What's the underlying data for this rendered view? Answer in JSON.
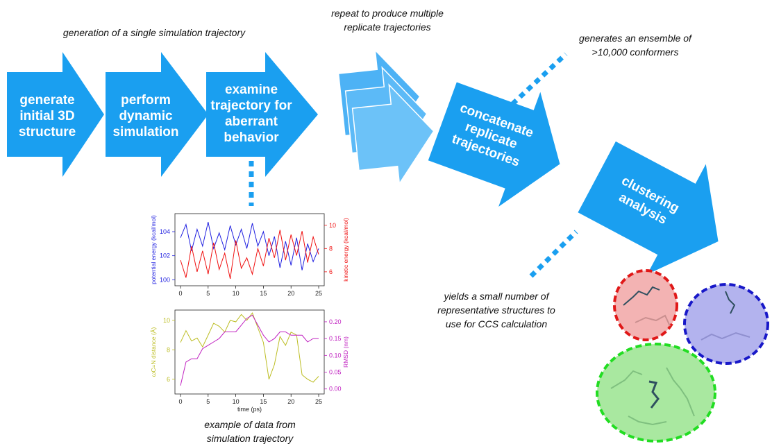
{
  "captions": {
    "single": {
      "lines": [
        "generation of a single simulation trajectory"
      ]
    },
    "repeat": {
      "lines": [
        "repeat to produce multiple",
        "replicate trajectories"
      ]
    },
    "ensemble": {
      "lines": [
        "generates an ensemble of",
        ">10,000 conformers"
      ]
    },
    "yields": {
      "lines": [
        "yields a small number of",
        "representative structures to",
        "use for CCS calculation"
      ]
    },
    "example": {
      "lines": [
        "example of data from",
        "simulation trajectory"
      ]
    }
  },
  "arrows": [
    {
      "lines": [
        "generate",
        "initial 3D",
        "structure"
      ]
    },
    {
      "lines": [
        "perform",
        "dynamic",
        "simulation"
      ]
    },
    {
      "lines": [
        "examine",
        "trajectory for",
        "aberrant",
        "behavior"
      ]
    },
    {
      "lines": [
        "concatenate",
        "replicate",
        "trajectories"
      ]
    },
    {
      "lines": [
        "clustering",
        "analysis"
      ]
    }
  ],
  "chart_data": [
    {
      "type": "line",
      "ylabel": "potential energy (kcal/mol)",
      "y2label": "kinetic energy (kcal/mol)",
      "x": [
        0,
        1,
        2,
        3,
        4,
        5,
        6,
        7,
        8,
        9,
        10,
        11,
        12,
        13,
        14,
        15,
        16,
        17,
        18,
        19,
        20,
        21,
        22,
        23,
        24,
        25
      ],
      "xlim": [
        -1,
        26
      ],
      "xticks": [
        0,
        5,
        10,
        15,
        20,
        25
      ],
      "ylim": [
        99.5,
        105.5
      ],
      "yticks": [
        100,
        102,
        104
      ],
      "y2lim": [
        4.8,
        11
      ],
      "y2ticks": [
        6,
        8,
        10
      ],
      "series": [
        {
          "color": "#1f1fe0",
          "values": [
            103.5,
            104.6,
            102.4,
            104.2,
            102.8,
            104.8,
            102.6,
            103.9,
            102.5,
            104.5,
            102.9,
            104.2,
            102.6,
            104.7,
            102.8,
            104.0,
            102.0,
            103.6,
            101.0,
            103.2,
            101.2,
            103.5,
            100.8,
            103.0,
            101.5,
            102.6
          ]
        },
        {
          "color": "#f01010",
          "axis": "y2",
          "values": [
            7.0,
            5.5,
            8.2,
            6.0,
            7.8,
            5.8,
            8.5,
            6.2,
            7.6,
            5.4,
            8.7,
            6.3,
            7.2,
            5.8,
            8.0,
            6.5,
            8.9,
            7.2,
            9.6,
            7.0,
            9.2,
            7.4,
            9.5,
            6.8,
            9.0,
            7.5
          ]
        }
      ]
    },
    {
      "type": "line",
      "ylabel": "ωC=N distance (Å)",
      "y2label": "RMSD (nm)",
      "xlabel": "time (ps)",
      "x": [
        0,
        1,
        2,
        3,
        4,
        5,
        6,
        7,
        8,
        9,
        10,
        11,
        12,
        13,
        14,
        15,
        16,
        17,
        18,
        19,
        20,
        21,
        22,
        23,
        24,
        25
      ],
      "xlim": [
        -1,
        26
      ],
      "xticks": [
        0,
        5,
        10,
        15,
        20,
        25
      ],
      "ylim": [
        5,
        10.7
      ],
      "yticks": [
        6,
        8,
        10
      ],
      "y2lim": [
        -0.015,
        0.235
      ],
      "y2ticks": [
        {
          "value": 0,
          "label": "0.00"
        },
        {
          "value": 0.05,
          "label": "0.05"
        },
        {
          "value": 0.1,
          "label": "0.10"
        },
        {
          "value": 0.15,
          "label": "0.15"
        },
        {
          "value": 0.2,
          "label": "0.20"
        }
      ],
      "series": [
        {
          "color": "#bcbd22",
          "values": [
            8.5,
            9.3,
            8.6,
            8.8,
            8.2,
            9.0,
            9.8,
            9.6,
            9.2,
            10.0,
            9.9,
            10.4,
            10.0,
            10.5,
            9.5,
            8.5,
            6.0,
            7.0,
            8.9,
            8.3,
            9.2,
            9.0,
            6.3,
            6.0,
            5.8,
            6.2
          ]
        },
        {
          "color": "#c020c0",
          "axis": "y2",
          "values": [
            0.01,
            0.08,
            0.09,
            0.09,
            0.12,
            0.13,
            0.14,
            0.15,
            0.17,
            0.17,
            0.17,
            0.19,
            0.21,
            0.22,
            0.19,
            0.16,
            0.14,
            0.15,
            0.17,
            0.17,
            0.16,
            0.16,
            0.16,
            0.14,
            0.15,
            0.15
          ]
        }
      ]
    }
  ]
}
